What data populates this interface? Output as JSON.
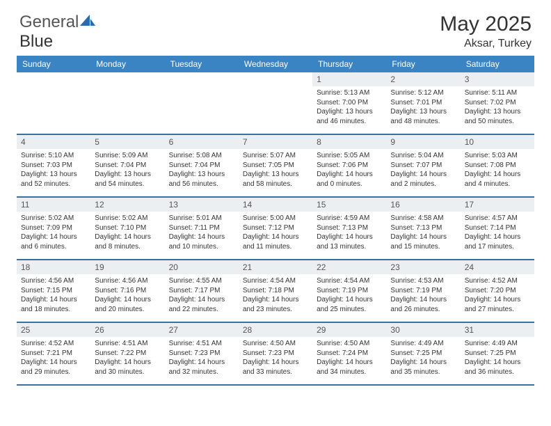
{
  "brand": {
    "part1": "General",
    "part2": "Blue"
  },
  "title": "May 2025",
  "location": "Aksar, Turkey",
  "colors": {
    "header_bg": "#3b84c4",
    "header_text": "#ffffff",
    "daynum_bg": "#eceff1",
    "divider": "#3b6fa0",
    "body_text": "#333333",
    "logo_accent": "#2a6bb0"
  },
  "day_labels": [
    "Sunday",
    "Monday",
    "Tuesday",
    "Wednesday",
    "Thursday",
    "Friday",
    "Saturday"
  ],
  "weeks": [
    [
      {
        "n": "",
        "lines": [
          "",
          "",
          "",
          ""
        ]
      },
      {
        "n": "",
        "lines": [
          "",
          "",
          "",
          ""
        ]
      },
      {
        "n": "",
        "lines": [
          "",
          "",
          "",
          ""
        ]
      },
      {
        "n": "",
        "lines": [
          "",
          "",
          "",
          ""
        ]
      },
      {
        "n": "1",
        "lines": [
          "Sunrise: 5:13 AM",
          "Sunset: 7:00 PM",
          "Daylight: 13 hours",
          "and 46 minutes."
        ]
      },
      {
        "n": "2",
        "lines": [
          "Sunrise: 5:12 AM",
          "Sunset: 7:01 PM",
          "Daylight: 13 hours",
          "and 48 minutes."
        ]
      },
      {
        "n": "3",
        "lines": [
          "Sunrise: 5:11 AM",
          "Sunset: 7:02 PM",
          "Daylight: 13 hours",
          "and 50 minutes."
        ]
      }
    ],
    [
      {
        "n": "4",
        "lines": [
          "Sunrise: 5:10 AM",
          "Sunset: 7:03 PM",
          "Daylight: 13 hours",
          "and 52 minutes."
        ]
      },
      {
        "n": "5",
        "lines": [
          "Sunrise: 5:09 AM",
          "Sunset: 7:04 PM",
          "Daylight: 13 hours",
          "and 54 minutes."
        ]
      },
      {
        "n": "6",
        "lines": [
          "Sunrise: 5:08 AM",
          "Sunset: 7:04 PM",
          "Daylight: 13 hours",
          "and 56 minutes."
        ]
      },
      {
        "n": "7",
        "lines": [
          "Sunrise: 5:07 AM",
          "Sunset: 7:05 PM",
          "Daylight: 13 hours",
          "and 58 minutes."
        ]
      },
      {
        "n": "8",
        "lines": [
          "Sunrise: 5:05 AM",
          "Sunset: 7:06 PM",
          "Daylight: 14 hours",
          "and 0 minutes."
        ]
      },
      {
        "n": "9",
        "lines": [
          "Sunrise: 5:04 AM",
          "Sunset: 7:07 PM",
          "Daylight: 14 hours",
          "and 2 minutes."
        ]
      },
      {
        "n": "10",
        "lines": [
          "Sunrise: 5:03 AM",
          "Sunset: 7:08 PM",
          "Daylight: 14 hours",
          "and 4 minutes."
        ]
      }
    ],
    [
      {
        "n": "11",
        "lines": [
          "Sunrise: 5:02 AM",
          "Sunset: 7:09 PM",
          "Daylight: 14 hours",
          "and 6 minutes."
        ]
      },
      {
        "n": "12",
        "lines": [
          "Sunrise: 5:02 AM",
          "Sunset: 7:10 PM",
          "Daylight: 14 hours",
          "and 8 minutes."
        ]
      },
      {
        "n": "13",
        "lines": [
          "Sunrise: 5:01 AM",
          "Sunset: 7:11 PM",
          "Daylight: 14 hours",
          "and 10 minutes."
        ]
      },
      {
        "n": "14",
        "lines": [
          "Sunrise: 5:00 AM",
          "Sunset: 7:12 PM",
          "Daylight: 14 hours",
          "and 11 minutes."
        ]
      },
      {
        "n": "15",
        "lines": [
          "Sunrise: 4:59 AM",
          "Sunset: 7:13 PM",
          "Daylight: 14 hours",
          "and 13 minutes."
        ]
      },
      {
        "n": "16",
        "lines": [
          "Sunrise: 4:58 AM",
          "Sunset: 7:13 PM",
          "Daylight: 14 hours",
          "and 15 minutes."
        ]
      },
      {
        "n": "17",
        "lines": [
          "Sunrise: 4:57 AM",
          "Sunset: 7:14 PM",
          "Daylight: 14 hours",
          "and 17 minutes."
        ]
      }
    ],
    [
      {
        "n": "18",
        "lines": [
          "Sunrise: 4:56 AM",
          "Sunset: 7:15 PM",
          "Daylight: 14 hours",
          "and 18 minutes."
        ]
      },
      {
        "n": "19",
        "lines": [
          "Sunrise: 4:56 AM",
          "Sunset: 7:16 PM",
          "Daylight: 14 hours",
          "and 20 minutes."
        ]
      },
      {
        "n": "20",
        "lines": [
          "Sunrise: 4:55 AM",
          "Sunset: 7:17 PM",
          "Daylight: 14 hours",
          "and 22 minutes."
        ]
      },
      {
        "n": "21",
        "lines": [
          "Sunrise: 4:54 AM",
          "Sunset: 7:18 PM",
          "Daylight: 14 hours",
          "and 23 minutes."
        ]
      },
      {
        "n": "22",
        "lines": [
          "Sunrise: 4:54 AM",
          "Sunset: 7:19 PM",
          "Daylight: 14 hours",
          "and 25 minutes."
        ]
      },
      {
        "n": "23",
        "lines": [
          "Sunrise: 4:53 AM",
          "Sunset: 7:19 PM",
          "Daylight: 14 hours",
          "and 26 minutes."
        ]
      },
      {
        "n": "24",
        "lines": [
          "Sunrise: 4:52 AM",
          "Sunset: 7:20 PM",
          "Daylight: 14 hours",
          "and 27 minutes."
        ]
      }
    ],
    [
      {
        "n": "25",
        "lines": [
          "Sunrise: 4:52 AM",
          "Sunset: 7:21 PM",
          "Daylight: 14 hours",
          "and 29 minutes."
        ]
      },
      {
        "n": "26",
        "lines": [
          "Sunrise: 4:51 AM",
          "Sunset: 7:22 PM",
          "Daylight: 14 hours",
          "and 30 minutes."
        ]
      },
      {
        "n": "27",
        "lines": [
          "Sunrise: 4:51 AM",
          "Sunset: 7:23 PM",
          "Daylight: 14 hours",
          "and 32 minutes."
        ]
      },
      {
        "n": "28",
        "lines": [
          "Sunrise: 4:50 AM",
          "Sunset: 7:23 PM",
          "Daylight: 14 hours",
          "and 33 minutes."
        ]
      },
      {
        "n": "29",
        "lines": [
          "Sunrise: 4:50 AM",
          "Sunset: 7:24 PM",
          "Daylight: 14 hours",
          "and 34 minutes."
        ]
      },
      {
        "n": "30",
        "lines": [
          "Sunrise: 4:49 AM",
          "Sunset: 7:25 PM",
          "Daylight: 14 hours",
          "and 35 minutes."
        ]
      },
      {
        "n": "31",
        "lines": [
          "Sunrise: 4:49 AM",
          "Sunset: 7:25 PM",
          "Daylight: 14 hours",
          "and 36 minutes."
        ]
      }
    ]
  ]
}
